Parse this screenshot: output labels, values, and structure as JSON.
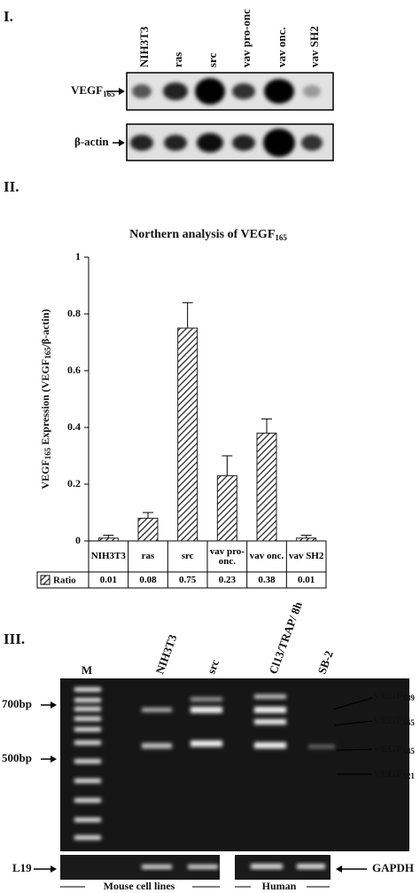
{
  "panel_1": {
    "label": "I.",
    "lanes": [
      "NIH3T3",
      "ras",
      "src",
      "vav pro-onc",
      "vav onc.",
      "vav SH2"
    ],
    "rows": [
      {
        "text": "VEGF",
        "subscript": "165"
      },
      {
        "text": "β-actin"
      }
    ]
  },
  "panel_2": {
    "label": "II."
  },
  "chart_data": {
    "type": "bar",
    "title": "Northern analysis of VEGF",
    "title_subscript": "165",
    "y_label_parts": [
      "VEGF",
      "165",
      " Expression (VEGF",
      "165",
      "/β-actin)"
    ],
    "categories": [
      "NIH3T3",
      "ras",
      "src",
      "vav pro-onc.",
      "vav onc.",
      "vav SH2"
    ],
    "values": [
      0.01,
      0.08,
      0.75,
      0.23,
      0.38,
      0.01
    ],
    "errors": [
      0.01,
      0.02,
      0.09,
      0.07,
      0.05,
      0.01
    ],
    "row_label": "Ratio",
    "value_labels": [
      "0.01",
      "0.08",
      "0.75",
      "0.23",
      "0.38",
      "0.01"
    ],
    "ylim": [
      0,
      1
    ],
    "yticks": [
      0,
      0.2,
      0.4,
      0.6,
      0.8,
      1
    ],
    "color": "#222222",
    "pattern": "hatch"
  },
  "panel_3": {
    "label": "III.",
    "marker_label": "M",
    "lanes": [
      "NIH3T3",
      "src",
      "Cl13/TRAP/ 8h",
      "SB-2"
    ],
    "size_markers": [
      "700bp",
      "500bp"
    ],
    "isoforms": [
      {
        "text": "VEGF",
        "subscript": "189"
      },
      {
        "text": "VEGF",
        "subscript": "165"
      },
      {
        "text": "VEGF",
        "subscript": "145"
      },
      {
        "text": "VEGF",
        "subscript": "121"
      }
    ],
    "loading_controls": [
      "L19",
      "GAPDH"
    ],
    "groups": [
      "Mouse cell lines",
      "Human"
    ]
  }
}
